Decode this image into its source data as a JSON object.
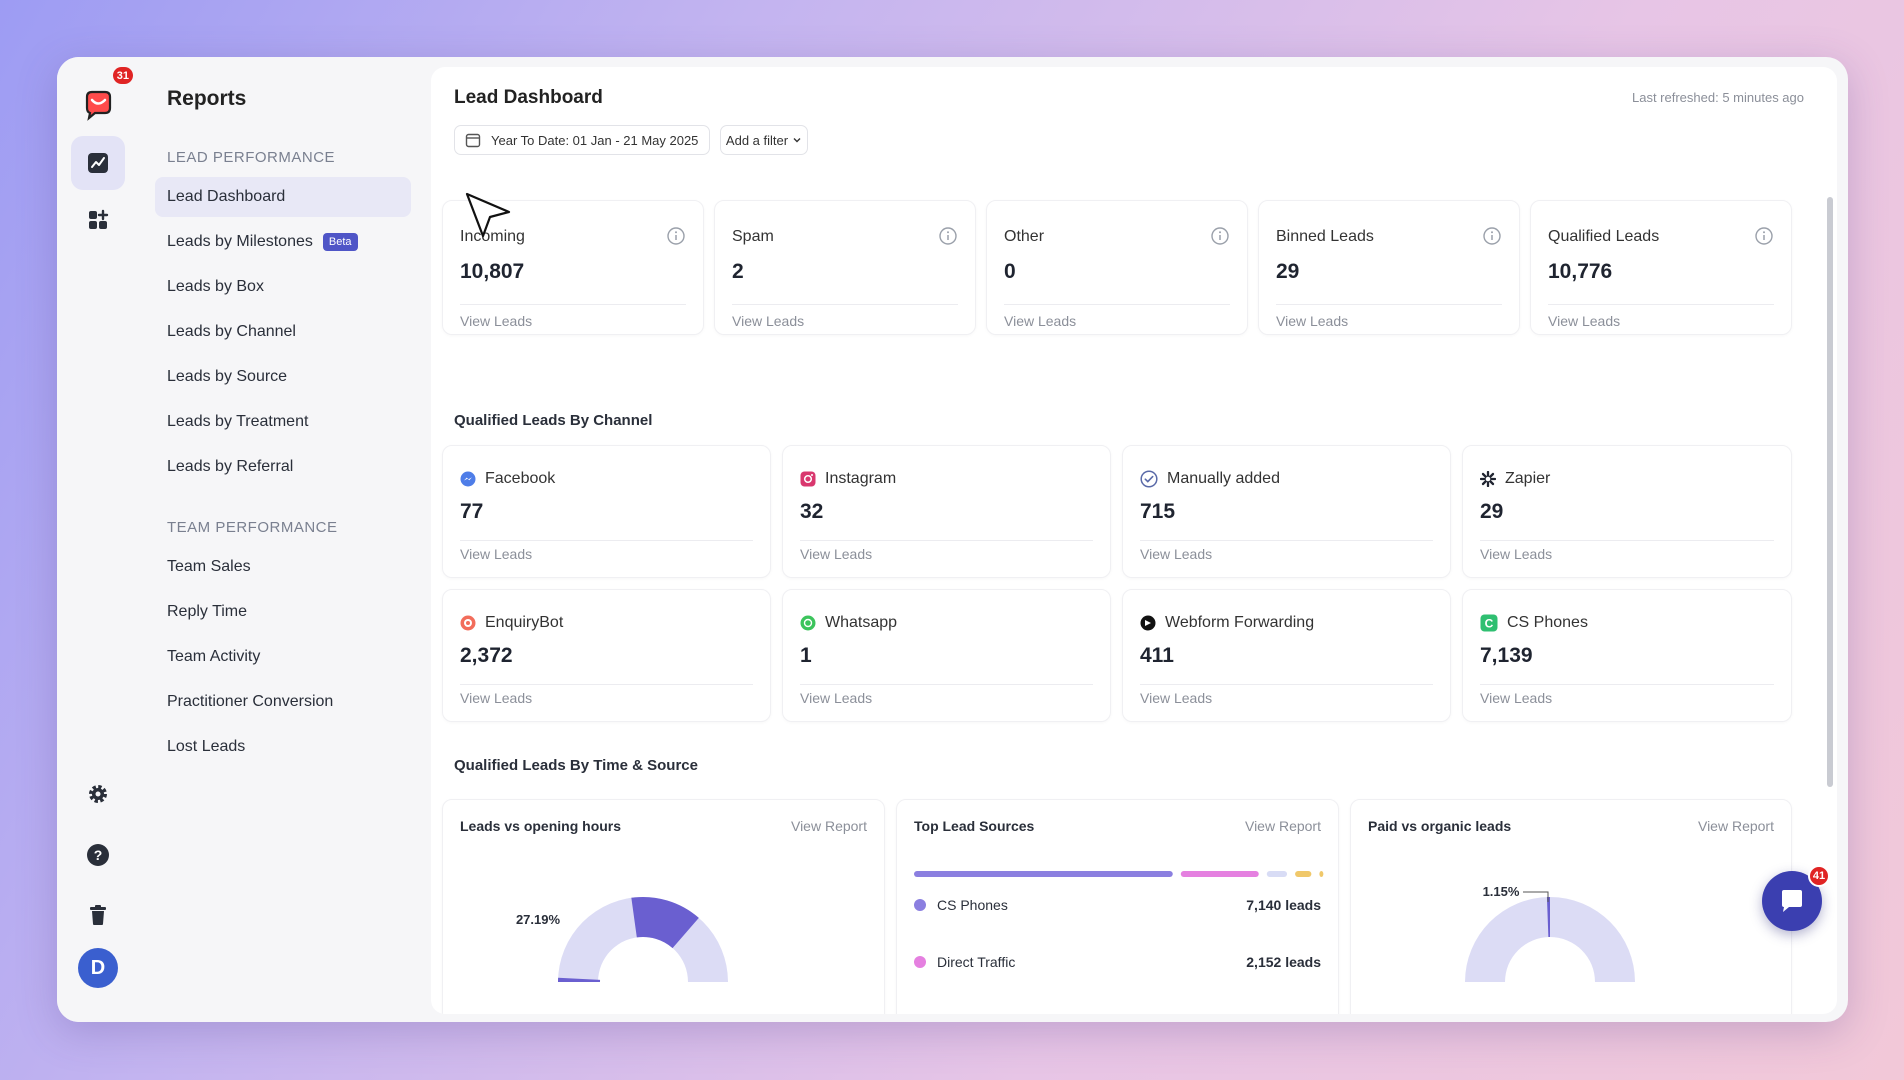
{
  "rail": {
    "logo_badge": "31",
    "avatar_initial": "D"
  },
  "subnav": {
    "title": "Reports",
    "lead_section": "LEAD PERFORMANCE",
    "lead_items": [
      {
        "label": "Lead Dashboard"
      },
      {
        "label": "Leads by Milestones",
        "badge": "Beta"
      },
      {
        "label": "Leads by Box"
      },
      {
        "label": "Leads by Channel"
      },
      {
        "label": "Leads by Source"
      },
      {
        "label": "Leads by Treatment"
      },
      {
        "label": "Leads by Referral"
      }
    ],
    "team_section": "TEAM PERFORMANCE",
    "team_items": [
      {
        "label": "Team Sales"
      },
      {
        "label": "Reply Time"
      },
      {
        "label": "Team Activity"
      },
      {
        "label": "Practitioner Conversion"
      },
      {
        "label": "Lost Leads"
      }
    ]
  },
  "main": {
    "title": "Lead Dashboard",
    "refreshed": "Last refreshed: 5 minutes ago",
    "date_range": "Year To Date: 01 Jan - 21 May 2025",
    "add_filter": "Add a filter",
    "stats": [
      {
        "label": "Incoming",
        "value": "10,807",
        "link": "View Leads"
      },
      {
        "label": "Spam",
        "value": "2",
        "link": "View Leads"
      },
      {
        "label": "Other",
        "value": "0",
        "link": "View Leads"
      },
      {
        "label": "Binned Leads",
        "value": "29",
        "link": "View Leads"
      },
      {
        "label": "Qualified Leads",
        "value": "10,776",
        "link": "View Leads"
      }
    ],
    "channels_heading": "Qualified Leads By Channel",
    "channels": [
      {
        "name": "Facebook",
        "value": "77",
        "link": "View Leads",
        "icon": "facebook-icon"
      },
      {
        "name": "Instagram",
        "value": "32",
        "link": "View Leads",
        "icon": "instagram-icon"
      },
      {
        "name": "Manually added",
        "value": "715",
        "link": "View Leads",
        "icon": "check-circle-icon"
      },
      {
        "name": "Zapier",
        "value": "29",
        "link": "View Leads",
        "icon": "zapier-icon"
      },
      {
        "name": "EnquiryBot",
        "value": "2,372",
        "link": "View Leads",
        "icon": "enquirybot-icon"
      },
      {
        "name": "Whatsapp",
        "value": "1",
        "link": "View Leads",
        "icon": "whatsapp-icon"
      },
      {
        "name": "Webform Forwarding",
        "value": "411",
        "link": "View Leads",
        "icon": "webform-icon"
      },
      {
        "name": "CS Phones",
        "value": "7,139",
        "link": "View Leads",
        "icon": "cs-phones-icon"
      }
    ],
    "time_heading": "Qualified Leads By Time & Source",
    "chart_cards": [
      {
        "title": "Leads vs opening hours",
        "link": "View Report"
      },
      {
        "title": "Top Lead Sources",
        "link": "View Report"
      },
      {
        "title": "Paid vs organic leads",
        "link": "View Report"
      }
    ],
    "chat_badge": "41"
  },
  "chart_data": [
    {
      "type": "pie",
      "title": "Leads vs opening hours",
      "slices": [
        {
          "label": "27.19%",
          "value": 27.19,
          "color": "#6a5fd0"
        },
        {
          "value": 72.81,
          "color": "#dcdcf5"
        }
      ],
      "style": "half-donut"
    },
    {
      "type": "bar",
      "title": "Top Lead Sources",
      "orientation": "stacked-horizontal",
      "series": [
        {
          "name": "CS Phones",
          "value": 7140,
          "label": "7,140 leads",
          "color": "#8b7fe0"
        },
        {
          "name": "Direct Traffic",
          "value": 2152,
          "label": "2,152 leads",
          "color": "#e580e0"
        }
      ],
      "extra_segments": [
        {
          "color": "#d8dcf5",
          "value": 560
        },
        {
          "color": "#f0c86a",
          "value": 450
        },
        {
          "color": "#f0c86a",
          "value": 100
        }
      ]
    },
    {
      "type": "pie",
      "title": "Paid vs organic leads",
      "slices": [
        {
          "label": "1.15%",
          "value": 1.15,
          "color": "#6a5fd0"
        },
        {
          "value": 98.85,
          "color": "#dcdcf5"
        }
      ],
      "style": "half-donut"
    }
  ]
}
